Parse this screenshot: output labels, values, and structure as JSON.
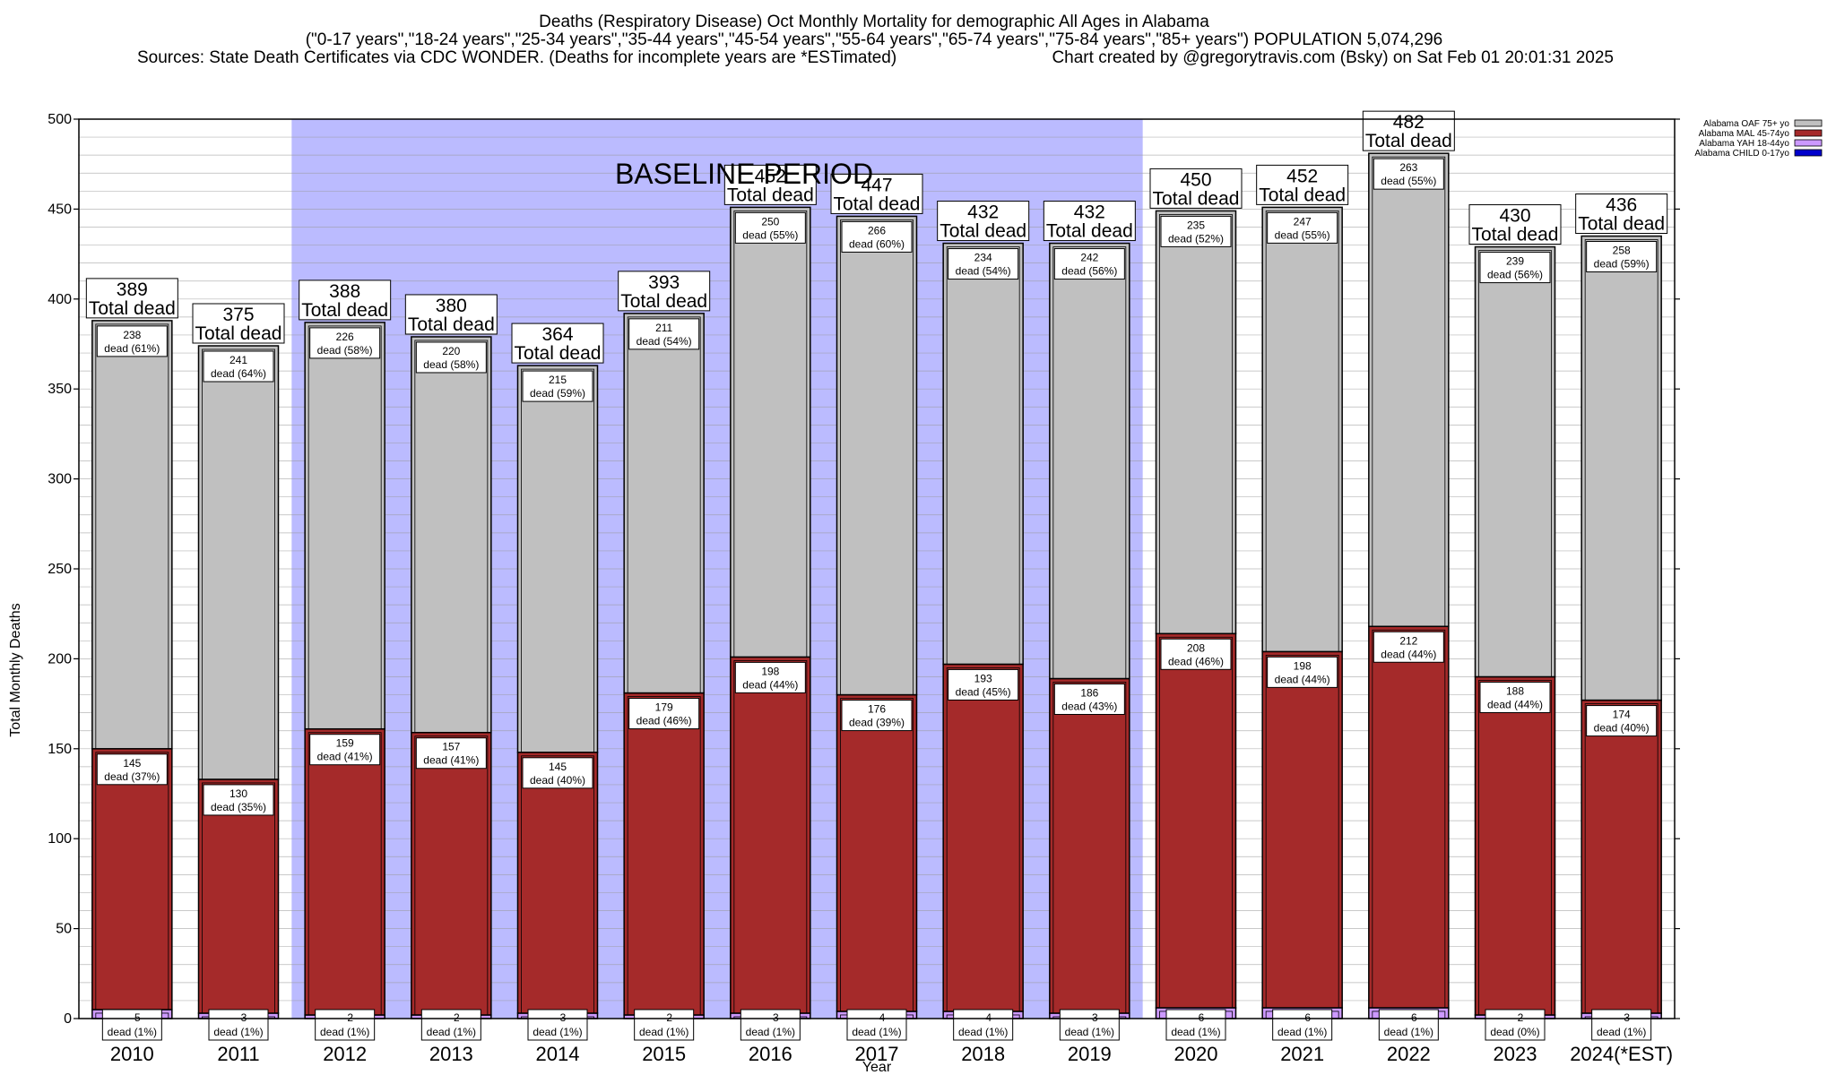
{
  "titles": {
    "line1": "Deaths (Respiratory Disease) Oct Monthly Mortality for demographic All Ages in Alabama",
    "line2": "(\"0-17 years\",\"18-24 years\",\"25-34 years\",\"35-44 years\",\"45-54 years\",\"55-64 years\",\"65-74 years\",\"75-84 years\",\"85+ years\") POPULATION 5,074,296",
    "line3_left": "Sources: State Death Certificates via CDC WONDER. (Deaths for incomplete years are *ESTimated)",
    "line3_right": "Chart created by @gregorytravis.com (Bsky) on Sat Feb 01 20:01:31 2025"
  },
  "colors": {
    "oaf": "#c0c0c0",
    "mal": "#a52a2a",
    "yah": "#cc99ff",
    "child": "#0000cc",
    "baseline": "#bbbbff"
  },
  "chart_data": {
    "type": "bar",
    "stacked": true,
    "xlabel": "Year",
    "ylabel": "Total Monthly Deaths",
    "ylim": [
      0,
      500
    ],
    "yticks": [
      0,
      50,
      100,
      150,
      200,
      250,
      300,
      350,
      400,
      450,
      500
    ],
    "grid": true,
    "legend_position": "top-right",
    "categories": [
      "2010",
      "2011",
      "2012",
      "2013",
      "2014",
      "2015",
      "2016",
      "2017",
      "2018",
      "2019",
      "2020",
      "2021",
      "2022",
      "2023",
      "2024(*EST)"
    ],
    "series": [
      {
        "name": "Alabama CHILD 0-17yo",
        "key": "child",
        "values": [
          0,
          0,
          0,
          0,
          0,
          0,
          0,
          0,
          0,
          0,
          0,
          0,
          0,
          0,
          0
        ]
      },
      {
        "name": "Alabama YAH 18-44yo",
        "key": "yah",
        "values": [
          5,
          3,
          2,
          2,
          3,
          2,
          3,
          4,
          4,
          3,
          6,
          6,
          6,
          2,
          3
        ],
        "labels_pct": [
          "1%",
          "1%",
          "1%",
          "1%",
          "1%",
          "1%",
          "1%",
          "1%",
          "1%",
          "1%",
          "1%",
          "1%",
          "1%",
          "0%",
          "1%"
        ]
      },
      {
        "name": "Alabama MAL 45-74yo",
        "key": "mal",
        "values": [
          145,
          130,
          159,
          157,
          145,
          179,
          198,
          176,
          193,
          186,
          208,
          198,
          212,
          188,
          174
        ],
        "labels_pct": [
          "37%",
          "35%",
          "41%",
          "41%",
          "40%",
          "46%",
          "44%",
          "39%",
          "45%",
          "43%",
          "46%",
          "44%",
          "44%",
          "44%",
          "40%"
        ]
      },
      {
        "name": "Alabama OAF 75+ yo",
        "key": "oaf",
        "values": [
          238,
          241,
          226,
          220,
          215,
          211,
          250,
          266,
          234,
          242,
          235,
          247,
          263,
          239,
          258
        ],
        "labels_pct": [
          "61%",
          "64%",
          "58%",
          "58%",
          "59%",
          "54%",
          "55%",
          "60%",
          "54%",
          "56%",
          "52%",
          "55%",
          "55%",
          "56%",
          "59%"
        ]
      }
    ],
    "totals": [
      389,
      375,
      388,
      380,
      364,
      393,
      452,
      447,
      432,
      432,
      450,
      452,
      482,
      430,
      436
    ],
    "total_label": "Total dead",
    "dead_label": "dead",
    "baseline": {
      "label": "BASELINE PERIOD",
      "from": "2012",
      "to": "2019"
    }
  }
}
